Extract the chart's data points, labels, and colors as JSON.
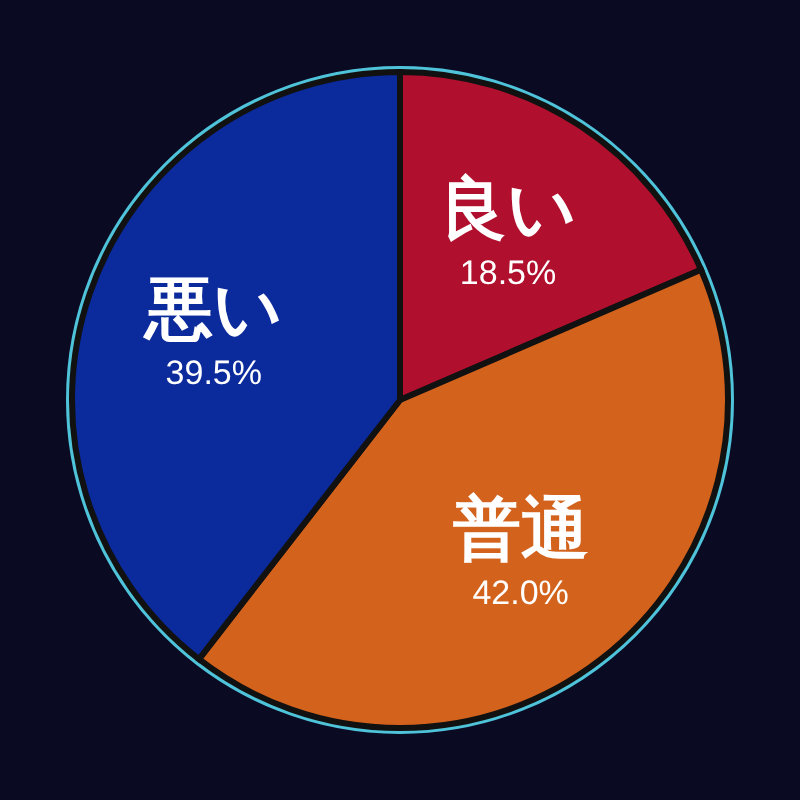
{
  "chart_data": {
    "type": "pie",
    "categories": [
      "良い",
      "普通",
      "悪い"
    ],
    "values": [
      18.5,
      42.0,
      39.5
    ],
    "colors": [
      "#b0102e",
      "#d2621c",
      "#0b2a9c"
    ],
    "value_labels": [
      "18.5%",
      "42.0%",
      "39.5%"
    ]
  }
}
